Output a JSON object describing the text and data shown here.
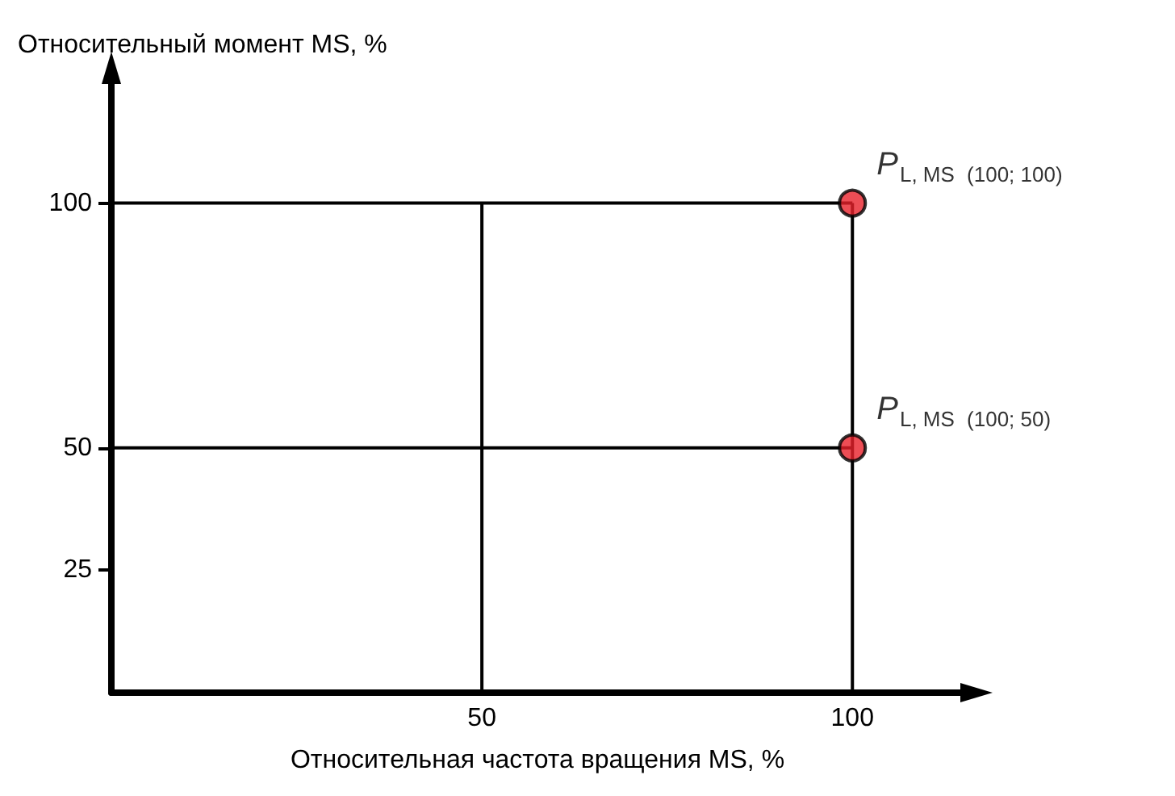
{
  "chart_data": {
    "type": "line",
    "xlabel": "Относительная частота вращения MS, %",
    "ylabel": "Относительный момент MS, %",
    "xlim": [
      0,
      115
    ],
    "ylim": [
      0,
      125
    ],
    "xticks": [
      50,
      100
    ],
    "yticks": [
      25,
      50,
      100
    ],
    "grid": false,
    "series": [
      {
        "x": [
          0,
          100
        ],
        "values": [
          100,
          100
        ],
        "color": "#000000",
        "marker": "none"
      },
      {
        "x": [
          0,
          100
        ],
        "values": [
          50,
          50
        ],
        "color": "#000000",
        "marker": "none"
      },
      {
        "x": [
          50,
          50
        ],
        "values": [
          0,
          100
        ],
        "color": "#000000",
        "marker": "none"
      },
      {
        "x": [
          100,
          100
        ],
        "values": [
          0,
          100
        ],
        "color": "#000000",
        "marker": "none"
      },
      {
        "type": "scatter",
        "x": [
          100,
          100
        ],
        "values": [
          100,
          50
        ],
        "color": "#e8202a",
        "marker": "circle"
      }
    ],
    "annotations": [
      {
        "text": "P$_{L, MS}$ (100; 100)",
        "x": 100,
        "y": 100
      },
      {
        "text": "P$_{L, MS}$ (100; 50)",
        "x": 100,
        "y": 50
      }
    ]
  }
}
